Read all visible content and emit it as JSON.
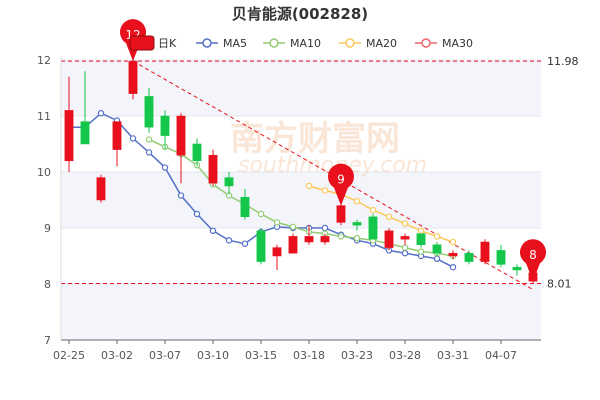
{
  "chart_data": {
    "type": "candlestick",
    "title": "贝肯能源(002828)",
    "ylim": [
      7,
      12
    ],
    "yticks": [
      7,
      8,
      9,
      10,
      11,
      12
    ],
    "xtick_labels": [
      {
        "index": 0,
        "label": "02-25"
      },
      {
        "index": 3,
        "label": "03-02"
      },
      {
        "index": 6,
        "label": "03-07"
      },
      {
        "index": 9,
        "label": "03-10"
      },
      {
        "index": 12,
        "label": "03-15"
      },
      {
        "index": 15,
        "label": "03-18"
      },
      {
        "index": 18,
        "label": "03-23"
      },
      {
        "index": 21,
        "label": "03-28"
      },
      {
        "index": 24,
        "label": "03-31"
      },
      {
        "index": 27,
        "label": "04-07"
      }
    ],
    "candles": [
      {
        "o": 10.2,
        "c": 11.1,
        "h": 11.7,
        "l": 10.0
      },
      {
        "o": 10.9,
        "c": 10.5,
        "h": 11.8,
        "l": 10.5
      },
      {
        "o": 9.5,
        "c": 9.9,
        "h": 9.95,
        "l": 9.45
      },
      {
        "o": 10.4,
        "c": 10.9,
        "h": 10.9,
        "l": 10.1
      },
      {
        "o": 11.4,
        "c": 11.98,
        "h": 12.0,
        "l": 11.3
      },
      {
        "o": 11.35,
        "c": 10.8,
        "h": 11.5,
        "l": 10.7
      },
      {
        "o": 11.0,
        "c": 10.65,
        "h": 11.1,
        "l": 10.4
      },
      {
        "o": 10.3,
        "c": 11.0,
        "h": 11.05,
        "l": 9.8
      },
      {
        "o": 10.5,
        "c": 10.2,
        "h": 10.6,
        "l": 10.1
      },
      {
        "o": 9.8,
        "c": 10.3,
        "h": 10.4,
        "l": 9.75
      },
      {
        "o": 9.9,
        "c": 9.75,
        "h": 10.0,
        "l": 9.6
      },
      {
        "o": 9.55,
        "c": 9.2,
        "h": 9.7,
        "l": 9.15
      },
      {
        "o": 8.95,
        "c": 8.4,
        "h": 9.0,
        "l": 8.35
      },
      {
        "o": 8.5,
        "c": 8.65,
        "h": 8.7,
        "l": 8.25
      },
      {
        "o": 8.55,
        "c": 8.85,
        "h": 8.9,
        "l": 8.55
      },
      {
        "o": 8.75,
        "c": 8.85,
        "h": 9.05,
        "l": 8.7
      },
      {
        "o": 8.75,
        "c": 8.85,
        "h": 8.9,
        "l": 8.7
      },
      {
        "o": 9.1,
        "c": 9.4,
        "h": 9.45,
        "l": 9.05
      },
      {
        "o": 9.1,
        "c": 9.05,
        "h": 9.15,
        "l": 8.95
      },
      {
        "o": 9.2,
        "c": 8.8,
        "h": 9.25,
        "l": 8.8
      },
      {
        "o": 8.65,
        "c": 8.95,
        "h": 9.0,
        "l": 8.6
      },
      {
        "o": 8.8,
        "c": 8.85,
        "h": 8.9,
        "l": 8.7
      },
      {
        "o": 8.9,
        "c": 8.7,
        "h": 8.9,
        "l": 8.65
      },
      {
        "o": 8.7,
        "c": 8.55,
        "h": 8.75,
        "l": 8.5
      },
      {
        "o": 8.5,
        "c": 8.55,
        "h": 8.6,
        "l": 8.45
      },
      {
        "o": 8.55,
        "c": 8.4,
        "h": 8.6,
        "l": 8.35
      },
      {
        "o": 8.4,
        "c": 8.75,
        "h": 8.8,
        "l": 8.35
      },
      {
        "o": 8.6,
        "c": 8.35,
        "h": 8.7,
        "l": 8.3
      },
      {
        "o": 8.3,
        "c": 8.25,
        "h": 8.35,
        "l": 8.15
      },
      {
        "o": 8.05,
        "c": 8.2,
        "h": 8.25,
        "l": 8.0
      }
    ],
    "ma_series": [
      {
        "name": "MA5",
        "color": "#5470c6",
        "start": 5,
        "values": [
          10.8,
          10.8,
          11.05,
          10.92,
          10.6,
          10.35,
          10.08,
          9.58,
          9.25,
          8.95,
          8.78,
          8.72,
          8.93,
          9.02,
          9.0,
          9.0,
          9.0,
          8.88,
          8.78,
          8.72,
          8.6,
          8.55,
          8.5,
          8.45,
          8.3
        ]
      },
      {
        "name": "MA10",
        "color": "#91cc75",
        "start": 10,
        "values": [
          10.58,
          10.45,
          10.32,
          10.12,
          9.78,
          9.58,
          9.42,
          9.25,
          9.1,
          9.02,
          8.93,
          8.9,
          8.85,
          8.82,
          8.78,
          8.72,
          8.65,
          8.58,
          8.55,
          8.5
        ]
      },
      {
        "name": "MA20",
        "color": "#fac858",
        "start": 20,
        "values": [
          9.75,
          9.67,
          9.6,
          9.48,
          9.32,
          9.2,
          9.08,
          8.95,
          8.85,
          8.75
        ]
      },
      {
        "name": "MA30",
        "color": "#ee6666",
        "start": 30,
        "values": []
      }
    ],
    "legend": [
      "日K",
      "MA5",
      "MA10",
      "MA20",
      "MA30"
    ],
    "ref_lines": [
      {
        "value": 11.98,
        "label": "11.98"
      },
      {
        "value": 8.01,
        "label": "8.01"
      }
    ],
    "trend_line": {
      "from": {
        "index": 4,
        "value": 11.98
      },
      "to": {
        "index": 29,
        "value": 7.9
      }
    },
    "markers": [
      {
        "index": 4,
        "value": 11.98,
        "label": "12"
      },
      {
        "index": 17,
        "value": 9.4,
        "label": "9"
      },
      {
        "index": 29,
        "value": 8.05,
        "label": "8"
      }
    ],
    "colors": {
      "up": "#e8101c",
      "down": "#14c64a"
    }
  },
  "watermark": {
    "text": "南方财富网",
    "sub": "southmoney.com"
  }
}
